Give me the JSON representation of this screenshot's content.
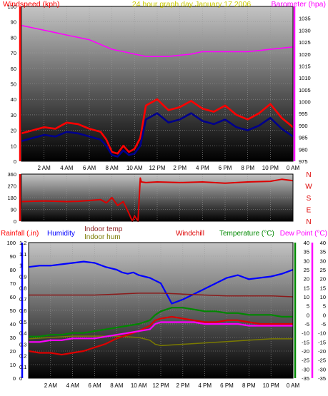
{
  "header": {
    "left_label": "Windspeed (kph)",
    "center_label": "24 hour graph day   January 17 2006",
    "right_label": "Barometer (hpa)"
  },
  "time_ticks": [
    "2 AM",
    "4 AM",
    "6 AM",
    "8 AM",
    "10 AM",
    "12 PM",
    "2 PM",
    "4 PM",
    "6 PM",
    "8 PM",
    "10 PM",
    "0 AM"
  ],
  "colors": {
    "background": "#ffffff",
    "frame": "#000000",
    "barometer": "#ff00ff",
    "gust": "#ff0000",
    "wind": "#00008b",
    "direction": "#dd0000",
    "humidity": "#0000ff",
    "indoor_temp": "#8b1a1a",
    "indoor_hum": "#7a7a00",
    "windchill": "#dd0000",
    "temperature": "#008800",
    "dew_point": "#ff00ff",
    "rainfall": "#0000ff",
    "header_yellow": "#cccc00"
  },
  "chart_data": [
    {
      "type": "line",
      "id": "wind_barometer",
      "left_axis_label": "Windspeed (kph)",
      "right_axis_label": "Barometer (hpa)",
      "x_range_hours": [
        0,
        24
      ],
      "ylim_left": [
        0,
        100
      ],
      "yticks_left": [
        0,
        10,
        20,
        30,
        40,
        50,
        60,
        70,
        80,
        90,
        100
      ],
      "ylim_right": [
        975,
        1040
      ],
      "yticks_right": [
        975,
        980,
        985,
        990,
        995,
        1000,
        1005,
        1010,
        1015,
        1020,
        1025,
        1030,
        1035
      ],
      "series": [
        {
          "key": "barometer",
          "axis": "right",
          "x": [
            0,
            1,
            2,
            3,
            4,
            5,
            6,
            7,
            8,
            9,
            10,
            11,
            12,
            13,
            14,
            15,
            16,
            17,
            18,
            19,
            20,
            21,
            22,
            23,
            24
          ],
          "y": [
            1032,
            1031,
            1030,
            1029,
            1028,
            1027,
            1026,
            1024,
            1022,
            1021,
            1020,
            1019,
            1019,
            1019,
            1019.5,
            1020,
            1021,
            1021,
            1021,
            1021,
            1021,
            1021.5,
            1022,
            1022.5,
            1023
          ]
        },
        {
          "key": "gust",
          "axis": "left",
          "x": [
            0,
            1,
            2,
            3,
            4,
            5,
            6,
            7,
            7.5,
            8,
            8.5,
            9,
            9.5,
            10,
            10.5,
            11,
            12,
            13,
            14,
            15,
            16,
            17,
            18,
            19,
            20,
            21,
            22,
            23,
            24
          ],
          "y": [
            18,
            20,
            22,
            21,
            25,
            24,
            21,
            19,
            14,
            6,
            5,
            10,
            6,
            8,
            15,
            36,
            40,
            33,
            35,
            39,
            34,
            32,
            36,
            30,
            27,
            31,
            37,
            28,
            22
          ]
        },
        {
          "key": "wind",
          "axis": "left",
          "x": [
            0,
            1,
            2,
            3,
            4,
            5,
            6,
            7,
            7.5,
            8,
            8.5,
            9,
            9.5,
            10,
            10.5,
            11,
            12,
            13,
            14,
            15,
            16,
            17,
            18,
            19,
            20,
            21,
            22,
            23,
            24
          ],
          "y": [
            13,
            15,
            17,
            16,
            19,
            18,
            16,
            14,
            10,
            4,
            3,
            7,
            4,
            5,
            10,
            27,
            31,
            25,
            27,
            31,
            26,
            24,
            27,
            22,
            20,
            23,
            28,
            21,
            16
          ]
        }
      ]
    },
    {
      "type": "line",
      "id": "wind_direction",
      "left_axis_label": "",
      "right_axis_label": "N W S E N",
      "compass_labels": [
        "N",
        "W",
        "S",
        "E",
        "N"
      ],
      "ylim": [
        0,
        360
      ],
      "yticks": [
        0,
        90,
        180,
        270,
        360
      ],
      "series": [
        {
          "key": "direction",
          "x": [
            0,
            2,
            4,
            5,
            6,
            7,
            7.5,
            8,
            8.5,
            9,
            9.5,
            9.8,
            10,
            10.3,
            10.5,
            10.6,
            11,
            12,
            14,
            16,
            18,
            20,
            22,
            23,
            24
          ],
          "y": [
            150,
            155,
            150,
            152,
            158,
            165,
            140,
            180,
            120,
            150,
            60,
            0,
            40,
            0,
            330,
            300,
            295,
            300,
            295,
            300,
            290,
            300,
            305,
            320,
            310
          ]
        }
      ]
    },
    {
      "type": "line",
      "id": "temp_humidity",
      "labels": [
        "Rainfall (.in)",
        "Humidity",
        "Indoor temp",
        "Indoor hum",
        "Windchill",
        "Temperature (°C)",
        "Dew Point (°C)"
      ],
      "ylim_humidity": [
        0,
        100
      ],
      "yticks_humidity": [
        0,
        10,
        20,
        30,
        40,
        50,
        60,
        70,
        80,
        90,
        100
      ],
      "ylim_rain": [
        0,
        1.2
      ],
      "yticks_rain": [
        "0",
        "0.1",
        "0.2",
        "0.3",
        "0.4",
        "0.5",
        "0.6",
        "0.7",
        "0.8",
        "0.9",
        "1",
        "1.1",
        "1.2"
      ],
      "ylim_temp": [
        -35,
        40
      ],
      "yticks_temp": [
        -35,
        -30,
        -25,
        -20,
        -15,
        -10,
        -5,
        0,
        5,
        10,
        15,
        20,
        25,
        30,
        35,
        40
      ],
      "series": [
        {
          "key": "humidity",
          "axis": "humidity",
          "x": [
            0,
            1,
            2,
            3,
            4,
            5,
            6,
            7,
            8,
            8.5,
            9,
            9.5,
            10,
            10.5,
            11,
            11.5,
            12,
            13,
            14,
            15,
            16,
            17,
            18,
            19,
            20,
            21,
            22,
            23,
            24
          ],
          "y": [
            82,
            83,
            83,
            84,
            85,
            86,
            85,
            82,
            80,
            78,
            77,
            78,
            76,
            75,
            74,
            72,
            70,
            55,
            58,
            62,
            66,
            70,
            74,
            76,
            73,
            74,
            75,
            77,
            80
          ]
        },
        {
          "key": "indoor_temp",
          "axis": "temp",
          "x": [
            0,
            2,
            4,
            6,
            8,
            10,
            12,
            14,
            16,
            18,
            20,
            22,
            24
          ],
          "y": [
            11,
            11,
            11,
            11,
            11.5,
            12,
            12,
            11.5,
            11,
            10.5,
            10.5,
            10.5,
            10
          ]
        },
        {
          "key": "indoor_hum",
          "axis": "humidity",
          "x": [
            0,
            2,
            4,
            6,
            8,
            10,
            11,
            11.5,
            12,
            14,
            16,
            18,
            20,
            22,
            24
          ],
          "y": [
            29,
            30,
            31,
            31,
            31,
            30,
            28,
            25,
            24,
            25,
            26,
            27,
            28,
            29,
            29
          ]
        },
        {
          "key": "windchill",
          "axis": "temp",
          "x": [
            0,
            1,
            2,
            3,
            4,
            5,
            6,
            7,
            8,
            9,
            10,
            11,
            11.5,
            12,
            13,
            14,
            15,
            16,
            17,
            18,
            19,
            20,
            21,
            22,
            23,
            24
          ],
          "y": [
            -20,
            -21,
            -21,
            -22,
            -21,
            -20,
            -18,
            -16,
            -13,
            -11,
            -9,
            -6,
            -3,
            -2,
            -1,
            -2,
            -3,
            -4,
            -4,
            -3,
            -3,
            -4,
            -5,
            -5,
            -5,
            -5
          ]
        },
        {
          "key": "temperature",
          "axis": "temp",
          "x": [
            0,
            1,
            2,
            3,
            4,
            5,
            6,
            7,
            8,
            9,
            10,
            11,
            11.5,
            12,
            13,
            14,
            15,
            16,
            17,
            18,
            19,
            20,
            21,
            22,
            23,
            24
          ],
          "y": [
            -12,
            -12,
            -11,
            -11,
            -10,
            -10,
            -9,
            -8,
            -7,
            -6,
            -5,
            -3,
            0,
            2,
            4,
            4,
            3,
            2,
            2,
            1,
            1,
            0,
            0,
            0,
            -1,
            -1
          ]
        },
        {
          "key": "dew_point",
          "axis": "temp",
          "x": [
            0,
            1,
            2,
            3,
            4,
            5,
            6,
            7,
            8,
            9,
            10,
            11,
            11.5,
            12,
            13,
            14,
            15,
            16,
            17,
            18,
            19,
            20,
            21,
            22,
            23,
            24
          ],
          "y": [
            -15,
            -15,
            -14,
            -14,
            -13,
            -13,
            -13,
            -12,
            -11,
            -10,
            -9,
            -8,
            -5,
            -4,
            -4,
            -4,
            -4,
            -5,
            -5,
            -5,
            -5,
            -6,
            -6,
            -6,
            -6,
            -6
          ]
        }
      ]
    }
  ]
}
